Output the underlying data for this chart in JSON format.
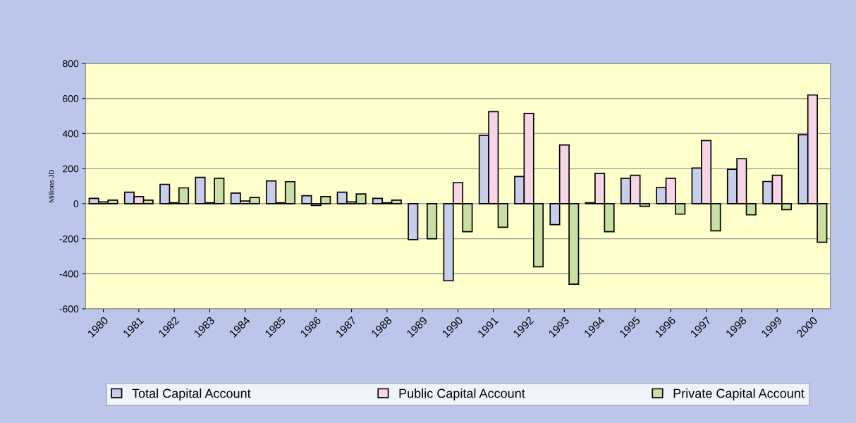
{
  "chart_data": {
    "type": "bar",
    "ylabel": "Millions JD",
    "categories": [
      "1980",
      "1981",
      "1982",
      "1983",
      "1984",
      "1985",
      "1986",
      "1987",
      "1988",
      "1989",
      "1990",
      "1991",
      "1992",
      "1993",
      "1994",
      "1995",
      "1996",
      "1997",
      "1998",
      "1999",
      "2000"
    ],
    "series": [
      {
        "name": "Total Capital Account",
        "color": "#c8cdea",
        "values": [
          30,
          65,
          110,
          150,
          60,
          130,
          45,
          65,
          30,
          -205,
          -440,
          390,
          155,
          -120,
          5,
          145,
          93,
          203,
          196,
          126,
          393
        ]
      },
      {
        "name": "Public Capital Account",
        "color": "#f6d6e6",
        "values": [
          10,
          40,
          5,
          5,
          15,
          5,
          -10,
          10,
          5,
          null,
          120,
          525,
          515,
          335,
          173,
          162,
          145,
          360,
          257,
          162,
          620
        ]
      },
      {
        "name": "Private Capital Account",
        "color": "#cadfa4",
        "values": [
          20,
          20,
          90,
          145,
          35,
          125,
          40,
          55,
          20,
          -200,
          -160,
          -135,
          -360,
          -460,
          -160,
          -15,
          -60,
          -155,
          -64,
          -34,
          -220
        ]
      }
    ],
    "ylim": [
      -600,
      800
    ],
    "yticks": [
      -600,
      -400,
      -200,
      0,
      200,
      400,
      600,
      800
    ],
    "grid": "y",
    "legend": "bottom",
    "ref_lines": [
      {
        "axis": "y",
        "value": 0,
        "color": "#888888",
        "line_style": "dotted"
      }
    ]
  }
}
